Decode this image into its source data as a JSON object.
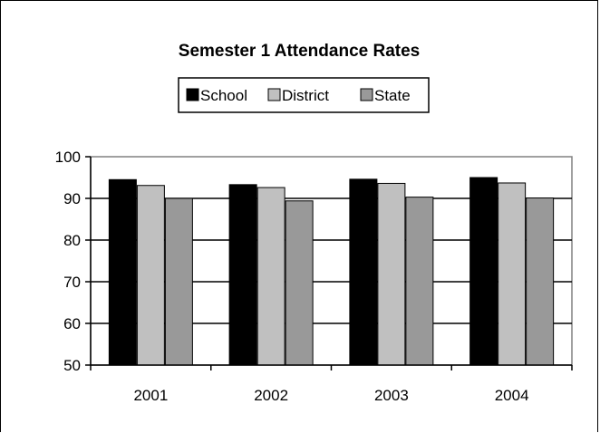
{
  "chart_data": {
    "type": "bar",
    "title": "Semester 1 Attendance Rates",
    "categories": [
      "2001",
      "2002",
      "2003",
      "2004"
    ],
    "series": [
      {
        "name": "School",
        "values": [
          94.5,
          93.3,
          94.6,
          95.0
        ],
        "color": "#000000"
      },
      {
        "name": "District",
        "values": [
          93.1,
          92.6,
          93.6,
          93.7
        ],
        "color": "#c0c0c0"
      },
      {
        "name": "State",
        "values": [
          90.0,
          89.4,
          90.3,
          90.1
        ],
        "color": "#999999"
      }
    ],
    "ylim": [
      50,
      100
    ],
    "yticks": [
      "100",
      "90",
      "80",
      "70",
      "60",
      "50"
    ],
    "grid": true,
    "legend_position": "top"
  }
}
